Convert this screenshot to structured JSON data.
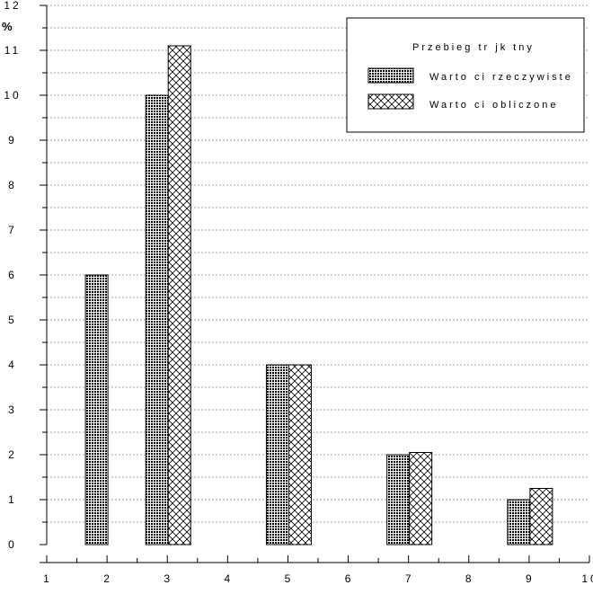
{
  "chart_data": {
    "type": "bar",
    "title": "",
    "ylabel": "%",
    "xlabel": "",
    "ylim": [
      0,
      12
    ],
    "xlim": [
      1,
      10
    ],
    "yticks": [
      "0",
      "1",
      "2",
      "3",
      "4",
      "5",
      "6",
      "7",
      "8",
      "9",
      "10",
      "11",
      "12"
    ],
    "xticks": [
      "1",
      "2",
      "3",
      "4",
      "5",
      "6",
      "7",
      "8",
      "9",
      "10"
    ],
    "grid": true,
    "legend_position": "top-right",
    "legend_title": "Przebieg tr jk tny",
    "series": [
      {
        "name": "Warto ci rzeczywiste",
        "pattern": "dots",
        "points": [
          {
            "x": 2,
            "value": 6
          },
          {
            "x": 3,
            "value": 10
          },
          {
            "x": 5,
            "value": 4
          },
          {
            "x": 7,
            "value": 2
          },
          {
            "x": 9,
            "value": 1
          }
        ]
      },
      {
        "name": "Warto ci obliczone",
        "pattern": "crosshatch",
        "points": [
          {
            "x": 3,
            "value": 11.1
          },
          {
            "x": 5,
            "value": 4
          },
          {
            "x": 7,
            "value": 2.05
          },
          {
            "x": 9,
            "value": 1.25
          }
        ]
      }
    ]
  }
}
